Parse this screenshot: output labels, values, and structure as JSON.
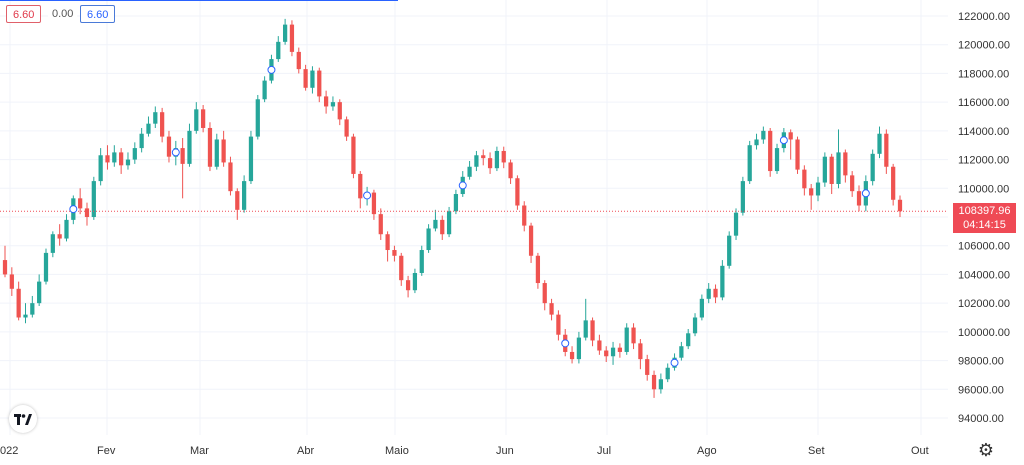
{
  "header": {
    "value_red": "6.60",
    "value_zero": "0.00",
    "value_blue": "6.60"
  },
  "price_badge": {
    "price": "108397.96",
    "countdown": "04:14:15"
  },
  "colors": {
    "up": "#26a69a",
    "down": "#ef5350",
    "badge": "#ef4a55",
    "gridline": "#f0f3fa"
  },
  "icons": {
    "logo": "tradingview-logo-icon",
    "settings": "gear-icon"
  },
  "chart_data": {
    "type": "candlestick",
    "y_axis": {
      "ticks": [
        "122000.00",
        "120000.00",
        "118000.00",
        "116000.00",
        "114000.00",
        "112000.00",
        "110000.00",
        "108000.00",
        "106000.00",
        "104000.00",
        "102000.00",
        "100000.00",
        "98000.00",
        "96000.00",
        "94000.00"
      ],
      "range": [
        93000,
        122500
      ]
    },
    "x_axis": {
      "labels": [
        "022",
        "Fev",
        "Mar",
        "Abr",
        "Maio",
        "Jun",
        "Jul",
        "Ago",
        "Set",
        "Out"
      ]
    },
    "last_price": 108397.96,
    "series": [
      [
        105000,
        104000,
        106000,
        103800
      ],
      [
        104000,
        103000,
        104500,
        102500
      ],
      [
        103000,
        101000,
        103500,
        100800
      ],
      [
        101000,
        101200,
        102000,
        100600
      ],
      [
        101200,
        102000,
        102500,
        101000
      ],
      [
        102000,
        103500,
        104000,
        101800
      ],
      [
        103500,
        105500,
        105800,
        103300
      ],
      [
        105500,
        106800,
        107000,
        105200
      ],
      [
        106800,
        106500,
        107500,
        106000
      ],
      [
        106500,
        107800,
        108200,
        106300
      ],
      [
        107800,
        109300,
        109500,
        107500
      ],
      [
        109300,
        108600,
        110000,
        108200
      ],
      [
        108600,
        108000,
        109000,
        107400
      ],
      [
        108000,
        110500,
        110800,
        107800
      ],
      [
        110500,
        112300,
        112800,
        110200
      ],
      [
        112300,
        111800,
        113000,
        111300
      ],
      [
        111800,
        112500,
        113000,
        111500
      ],
      [
        112500,
        111600,
        112800,
        111000
      ],
      [
        111600,
        112000,
        112500,
        111300
      ],
      [
        112000,
        112800,
        113200,
        111700
      ],
      [
        112800,
        113800,
        114200,
        112500
      ],
      [
        113800,
        114500,
        115000,
        113600
      ],
      [
        114500,
        115300,
        115700,
        114200
      ],
      [
        115300,
        113600,
        115600,
        113200
      ],
      [
        113600,
        112200,
        114000,
        111800
      ],
      [
        112200,
        112800,
        113300,
        111600
      ],
      [
        112800,
        111700,
        113500,
        109300
      ],
      [
        111700,
        114000,
        114500,
        111500
      ],
      [
        114000,
        115500,
        116000,
        113800
      ],
      [
        115500,
        114200,
        115800,
        113900
      ],
      [
        114200,
        111500,
        114600,
        111200
      ],
      [
        111500,
        113400,
        113800,
        111300
      ],
      [
        113400,
        111800,
        114000,
        111500
      ],
      [
        111800,
        109800,
        112200,
        109500
      ],
      [
        109800,
        108500,
        110000,
        107800
      ],
      [
        108500,
        110500,
        110900,
        108300
      ],
      [
        110500,
        113600,
        114000,
        110300
      ],
      [
        113600,
        116200,
        116500,
        113400
      ],
      [
        116200,
        117500,
        117800,
        116000
      ],
      [
        117500,
        119000,
        119300,
        117300
      ],
      [
        119000,
        120200,
        120600,
        118800
      ],
      [
        120200,
        121400,
        121800,
        120000
      ],
      [
        121400,
        119500,
        121700,
        119200
      ],
      [
        119500,
        118300,
        119800,
        118000
      ],
      [
        118300,
        117000,
        118600,
        116800
      ],
      [
        117000,
        118200,
        118500,
        116600
      ],
      [
        118200,
        116400,
        118400,
        116000
      ],
      [
        116400,
        115700,
        116800,
        115200
      ],
      [
        115700,
        116000,
        116400,
        115400
      ],
      [
        116000,
        114800,
        116200,
        114400
      ],
      [
        114800,
        113600,
        115000,
        113300
      ],
      [
        113600,
        111000,
        113800,
        110700
      ],
      [
        111000,
        109300,
        111200,
        108600
      ],
      [
        109300,
        109700,
        110100,
        108800
      ],
      [
        109700,
        108200,
        109900,
        107800
      ],
      [
        108200,
        106800,
        108600,
        106400
      ],
      [
        106800,
        105700,
        107000,
        104900
      ],
      [
        105700,
        105300,
        106000,
        104900
      ],
      [
        105300,
        103600,
        105500,
        103200
      ],
      [
        103600,
        102900,
        103900,
        102400
      ],
      [
        102900,
        104100,
        104400,
        102700
      ],
      [
        104100,
        105700,
        106000,
        103900
      ],
      [
        105700,
        107200,
        107500,
        105500
      ],
      [
        107200,
        107800,
        108500,
        107000
      ],
      [
        107800,
        106800,
        108100,
        106400
      ],
      [
        106800,
        108400,
        108700,
        106600
      ],
      [
        108400,
        109600,
        109900,
        108200
      ],
      [
        109600,
        110800,
        111200,
        109400
      ],
      [
        110800,
        111500,
        111900,
        110600
      ],
      [
        111500,
        112300,
        112600,
        111200
      ],
      [
        112300,
        112100,
        112700,
        111600
      ],
      [
        112100,
        111400,
        112500,
        111000
      ],
      [
        111400,
        112600,
        112900,
        111200
      ],
      [
        112600,
        111800,
        112900,
        111400
      ],
      [
        111800,
        110700,
        112000,
        110300
      ],
      [
        110700,
        108800,
        110900,
        108500
      ],
      [
        108800,
        107400,
        109100,
        107000
      ],
      [
        107400,
        105300,
        107600,
        104800
      ],
      [
        105300,
        103400,
        105500,
        103000
      ],
      [
        103400,
        102000,
        103600,
        101500
      ],
      [
        102000,
        101200,
        102300,
        100800
      ],
      [
        101200,
        99800,
        101500,
        99400
      ],
      [
        99800,
        98600,
        100200,
        98300
      ],
      [
        98600,
        98100,
        99000,
        97800
      ],
      [
        98100,
        99600,
        100000,
        97800
      ],
      [
        99600,
        100800,
        102300,
        99400
      ],
      [
        100800,
        99400,
        101000,
        99000
      ],
      [
        99400,
        98700,
        99800,
        98400
      ],
      [
        98700,
        98300,
        99000,
        97900
      ],
      [
        98300,
        98900,
        99300,
        97700
      ],
      [
        98900,
        98600,
        99200,
        98200
      ],
      [
        98600,
        100300,
        100600,
        98400
      ],
      [
        100300,
        99200,
        100600,
        98800
      ],
      [
        99200,
        98100,
        99500,
        97400
      ],
      [
        98100,
        97000,
        98400,
        96600
      ],
      [
        97000,
        96000,
        97300,
        95400
      ],
      [
        96000,
        96700,
        97100,
        95700
      ],
      [
        96700,
        97500,
        97800,
        96500
      ],
      [
        97500,
        98200,
        98500,
        97300
      ],
      [
        98200,
        99000,
        99300,
        98000
      ],
      [
        99000,
        99900,
        100200,
        98800
      ],
      [
        99900,
        101000,
        101300,
        99700
      ],
      [
        101000,
        102300,
        102600,
        100800
      ],
      [
        102300,
        103000,
        103400,
        102000
      ],
      [
        103000,
        102400,
        103300,
        102000
      ],
      [
        102400,
        104600,
        105000,
        102200
      ],
      [
        104600,
        106700,
        107000,
        104400
      ],
      [
        106700,
        108300,
        108600,
        106400
      ],
      [
        108300,
        110500,
        110800,
        108100
      ],
      [
        110500,
        113000,
        113300,
        110300
      ],
      [
        113000,
        113400,
        113800,
        112700
      ],
      [
        113400,
        114000,
        114300,
        113100
      ],
      [
        114000,
        111200,
        114200,
        110800
      ],
      [
        111200,
        112800,
        113100,
        111000
      ],
      [
        112800,
        113900,
        114200,
        112500
      ],
      [
        113900,
        113400,
        114100,
        112000
      ],
      [
        113400,
        111300,
        113600,
        111000
      ],
      [
        111300,
        110000,
        111600,
        109500
      ],
      [
        110000,
        109500,
        110300,
        108500
      ],
      [
        109500,
        110400,
        110800,
        109100
      ],
      [
        110400,
        112200,
        112500,
        110100
      ],
      [
        112200,
        110300,
        112400,
        109600
      ],
      [
        110300,
        112500,
        114100,
        110000
      ],
      [
        112500,
        110900,
        112700,
        110400
      ],
      [
        110900,
        109800,
        111200,
        109400
      ],
      [
        109800,
        108800,
        110200,
        108400
      ],
      [
        108800,
        110500,
        110900,
        108400
      ],
      [
        110500,
        112400,
        112700,
        110200
      ],
      [
        112400,
        113800,
        114300,
        112100
      ],
      [
        113800,
        111500,
        114100,
        111000
      ],
      [
        111500,
        109200,
        111700,
        108800
      ],
      [
        109200,
        108400,
        109500,
        108000
      ]
    ]
  }
}
